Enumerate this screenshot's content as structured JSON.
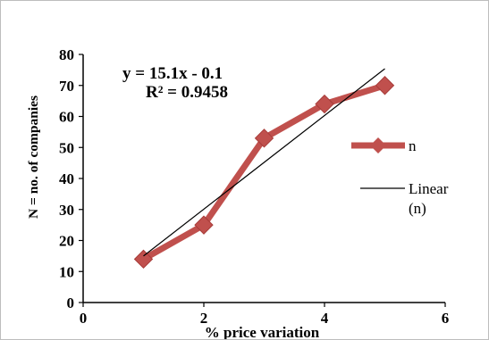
{
  "chart_data": {
    "type": "line",
    "xlabel": "% price variation",
    "ylabel": "N = no. of companies",
    "xlim": [
      0,
      6
    ],
    "ylim": [
      0,
      80
    ],
    "x_ticks": [
      0,
      2,
      4,
      6
    ],
    "y_ticks": [
      0,
      10,
      20,
      30,
      40,
      50,
      60,
      70,
      80
    ],
    "grid": false,
    "legend_position": "right",
    "series": [
      {
        "name": "n",
        "x": [
          1,
          2,
          3,
          4,
          5
        ],
        "y": [
          14,
          25,
          53,
          64,
          70
        ],
        "color": "#c0504d",
        "marker": "diamond"
      }
    ],
    "trendline": {
      "name": "Linear",
      "name_suffix": "(n)",
      "slope": 15.1,
      "intercept": -0.1,
      "x_range": [
        1,
        5
      ],
      "color": "#000000"
    },
    "annotations": [
      "y = 15.1x - 0.1",
      "R² = 0.9458"
    ]
  }
}
